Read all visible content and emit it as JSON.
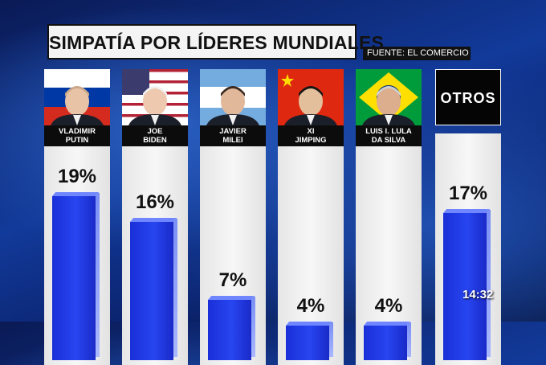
{
  "header": {
    "title": "SIMPATÍA POR LÍDERES MUNDIALES",
    "source": "FUENTE: EL COMERCIO"
  },
  "clock": "14:32",
  "chart_data": {
    "type": "bar",
    "title": "SIMPATÍA POR LÍDERES MUNDIALES",
    "categories": [
      "VLADIMIR\nPUTIN",
      "JOE\nBIDEN",
      "JAVIER\nMILEI",
      "XI\nJIMPING",
      "LUIS I. LULA\nDA SILVA",
      "OTROS"
    ],
    "values": [
      19,
      16,
      7,
      4,
      4,
      17
    ],
    "value_labels": [
      "19%",
      "16%",
      "7%",
      "4%",
      "4%",
      "17%"
    ],
    "unit": "%",
    "ylim": [
      0,
      20
    ],
    "bar_color": "#2140e8",
    "legend": "none",
    "grid": false
  },
  "flags": {
    "putin": [
      "#ffffff",
      "#0039a6",
      "#d52b1e"
    ],
    "biden": [
      "#b22234",
      "#ffffff",
      "#3c3b6e"
    ],
    "milei": [
      "#74acdf",
      "#ffffff"
    ],
    "xi": [
      "#de2910",
      "#ffde00"
    ],
    "lula": [
      "#009c3b",
      "#ffdf00",
      "#002776"
    ]
  },
  "placard_text": "OTROS"
}
